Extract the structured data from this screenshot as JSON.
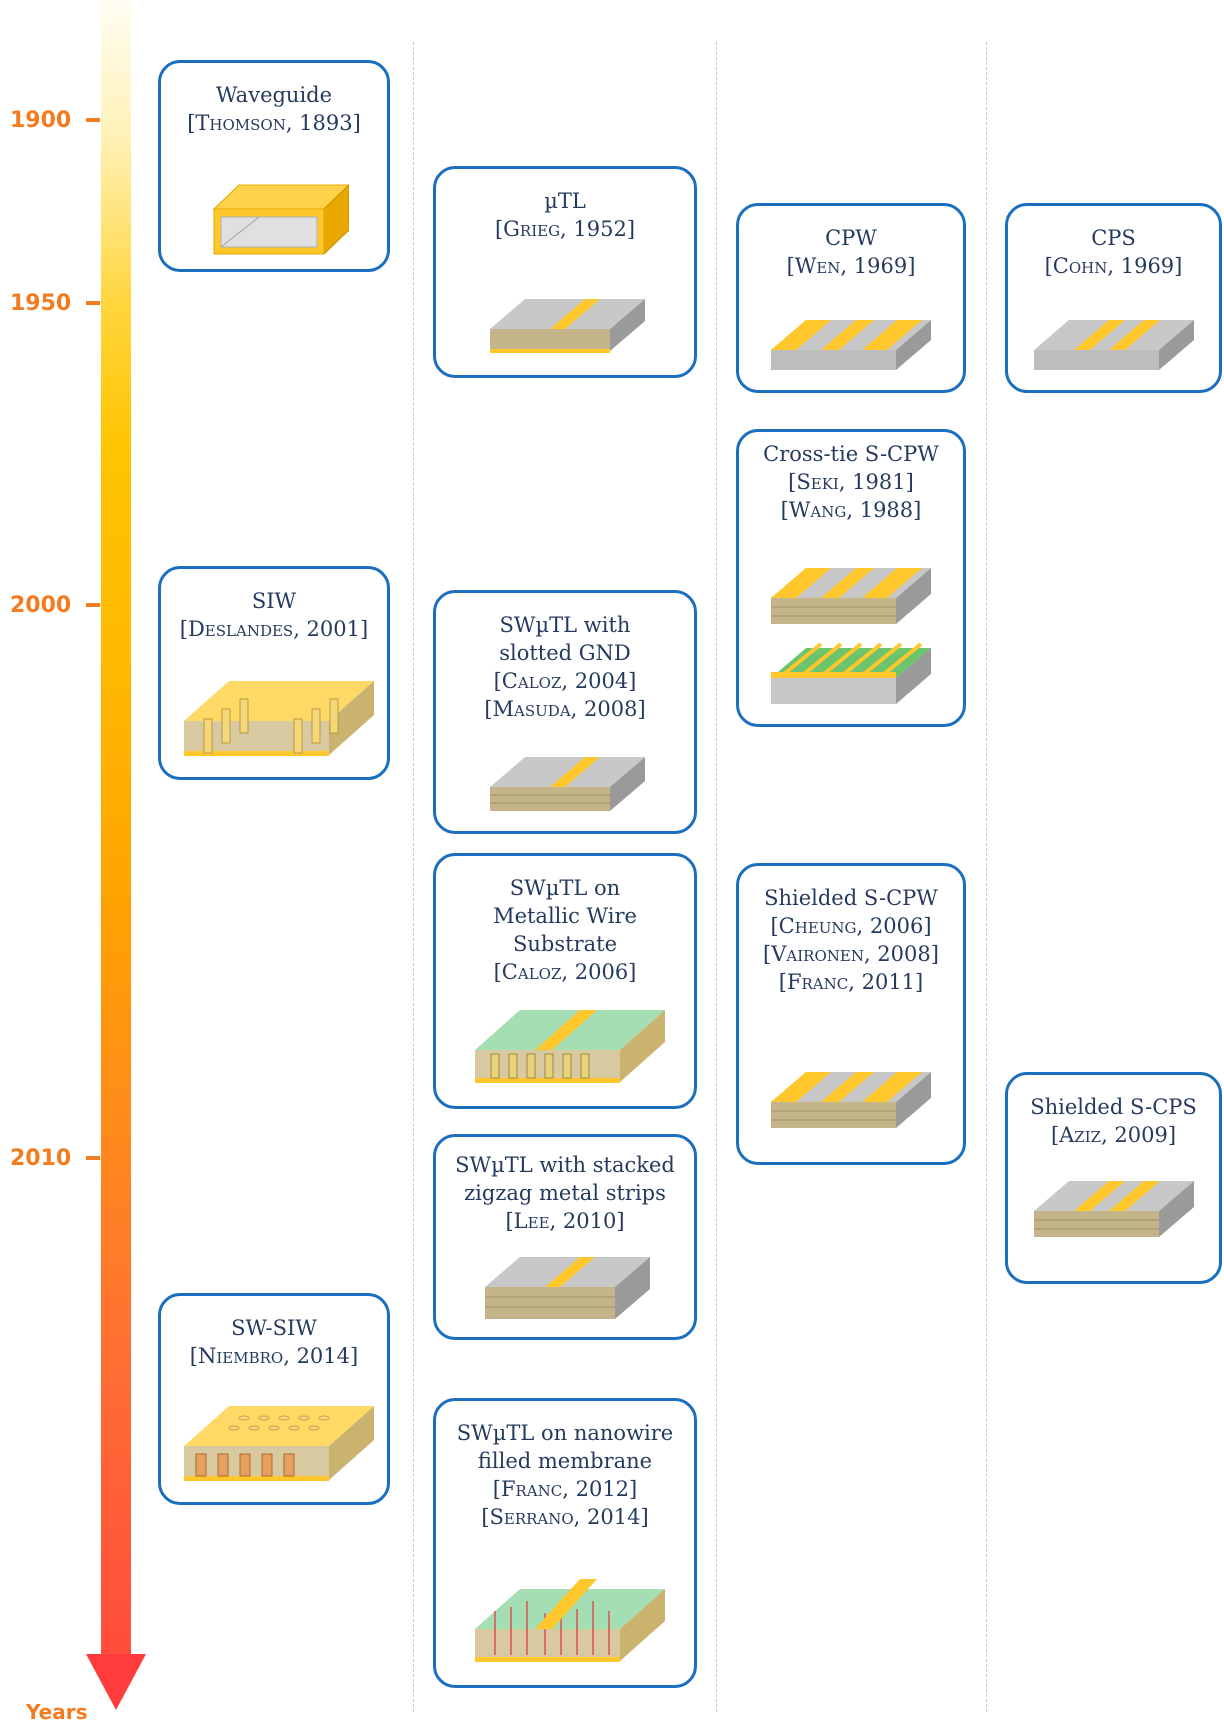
{
  "timeline": {
    "ticks": [
      "1900",
      "1950",
      "2000",
      "2010"
    ],
    "axis_label": "Years"
  },
  "cards": {
    "waveguide": {
      "title": "Waveguide",
      "refs": [
        "[Thomson, 1893]"
      ]
    },
    "ustl": {
      "title": "µTL",
      "refs": [
        "[Grieg, 1952]"
      ]
    },
    "cpw": {
      "title": "CPW",
      "refs": [
        "[Wen, 1969]"
      ]
    },
    "cps": {
      "title": "CPS",
      "refs": [
        "[Cohn, 1969]"
      ]
    },
    "crosstie": {
      "title": "Cross-tie S-CPW",
      "refs": [
        "[Seki, 1981]",
        "[Wang, 1988]"
      ]
    },
    "siw": {
      "title": "SIW",
      "refs": [
        "[Deslandes, 2001]"
      ]
    },
    "swutl_slotted": {
      "title": "SWµTL with slotted GND",
      "refs": [
        "[Caloz, 2004]",
        "[Masuda, 2008]"
      ]
    },
    "swutl_wire": {
      "title": "SWµTL on Metallic Wire Substrate",
      "refs": [
        "[Caloz, 2006]"
      ]
    },
    "shielded_scpw": {
      "title": "Shielded S-CPW",
      "refs": [
        "[Cheung, 2006]",
        "[Vaironen, 2008]",
        "[Franc, 2011]"
      ]
    },
    "shielded_scps": {
      "title": "Shielded S-CPS",
      "refs": [
        "[Aziz, 2009]"
      ]
    },
    "swutl_zigzag": {
      "title": "SWµTL with stacked zigzag metal strips",
      "refs": [
        "[Lee, 2010]"
      ]
    },
    "swsiw": {
      "title": "SW-SIW",
      "refs": [
        "[Niembro, 2014]"
      ]
    },
    "swutl_nanowire": {
      "title": "SWµTL on nanowire filled membrane",
      "refs": [
        "[Franc, 2012]",
        "[Serrano, 2014]"
      ]
    }
  },
  "colors": {
    "border": "#1a6fbf",
    "text": "#243a5e",
    "tick": "#f47c20",
    "metal": "#ffc72c",
    "substrate": "#c8c8c8",
    "membrane": "#8fd6a0"
  }
}
